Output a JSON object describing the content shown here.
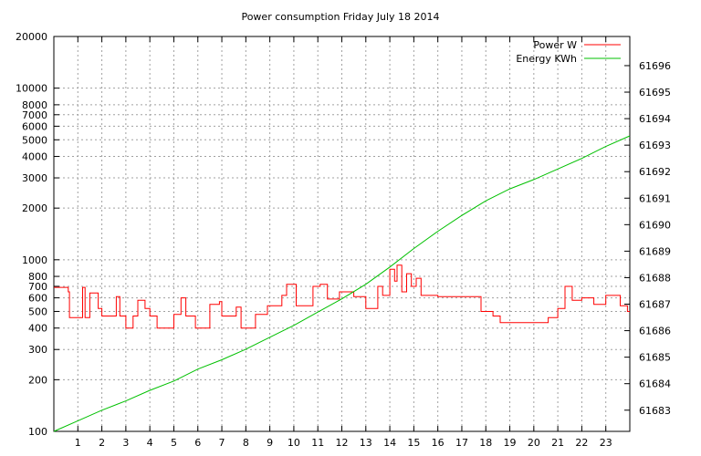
{
  "chart_data": {
    "type": "line",
    "title": "Power consumption Friday July 18 2014",
    "xlabel": "",
    "ylabel": "",
    "y2label": "",
    "x_range": [
      0,
      24
    ],
    "x_ticks": [
      "1",
      "2",
      "3",
      "4",
      "5",
      "6",
      "7",
      "8",
      "9",
      "10",
      "11",
      "12",
      "13",
      "14",
      "15",
      "16",
      "17",
      "18",
      "19",
      "20",
      "21",
      "22",
      "23"
    ],
    "y_scale": "log",
    "y_range": [
      100,
      20000
    ],
    "y_ticks": [
      "100",
      "200",
      "300",
      "400",
      "500",
      "600",
      "700",
      "800",
      "1000",
      "2000",
      "3000",
      "4000",
      "5000",
      "6000",
      "7000",
      "8000",
      "10000",
      "20000"
    ],
    "y2_range": [
      61682.2,
      61697.1
    ],
    "y2_ticks": [
      "61683",
      "61684",
      "61685",
      "61686",
      "61687",
      "61688",
      "61689",
      "61690",
      "61691",
      "61692",
      "61693",
      "61694",
      "61695",
      "61696"
    ],
    "grid": true,
    "legend_position": "top-right",
    "series": [
      {
        "name": "Power W",
        "color": "#ff0000",
        "axis": "left",
        "step": true,
        "x": [
          0.0,
          0.6,
          0.65,
          0.9,
          1.1,
          1.2,
          1.3,
          1.5,
          1.7,
          1.85,
          1.9,
          2.0,
          2.35,
          2.5,
          2.6,
          2.75,
          2.8,
          3.0,
          3.2,
          3.3,
          3.5,
          3.55,
          3.8,
          4.0,
          4.1,
          4.3,
          4.5,
          5.0,
          5.3,
          5.4,
          5.5,
          5.8,
          5.9,
          6.2,
          6.5,
          6.75,
          6.9,
          7.0,
          7.3,
          7.6,
          7.8,
          8.0,
          8.4,
          8.5,
          8.9,
          9.1,
          9.5,
          9.7,
          10.1,
          10.5,
          10.8,
          11.1,
          11.4,
          11.6,
          11.9,
          12.1,
          12.5,
          12.7,
          13.0,
          13.2,
          13.5,
          13.7,
          14.0,
          14.2,
          14.3,
          14.5,
          14.7,
          14.9,
          15.1,
          15.3,
          15.5,
          15.7,
          16.0,
          16.3,
          16.6,
          16.9,
          17.2,
          17.5,
          17.8,
          18.0,
          18.3,
          18.6,
          18.9,
          19.2,
          19.5,
          19.9,
          20.3,
          20.6,
          21.0,
          21.3,
          21.6,
          21.8,
          22.0,
          22.2,
          22.5,
          22.8,
          23.0,
          23.3,
          23.6,
          23.9
        ],
        "values": [
          690,
          650,
          460,
          460,
          460,
          690,
          460,
          640,
          640,
          520,
          520,
          470,
          470,
          470,
          610,
          470,
          470,
          400,
          400,
          470,
          580,
          580,
          520,
          470,
          470,
          400,
          400,
          480,
          600,
          600,
          470,
          470,
          400,
          400,
          550,
          550,
          570,
          470,
          470,
          530,
          400,
          400,
          480,
          480,
          540,
          540,
          620,
          720,
          540,
          540,
          700,
          720,
          590,
          590,
          650,
          650,
          610,
          610,
          520,
          520,
          700,
          620,
          880,
          750,
          930,
          650,
          830,
          700,
          780,
          620,
          620,
          620,
          610,
          610,
          610,
          610,
          610,
          610,
          500,
          500,
          470,
          430,
          430,
          430,
          430,
          430,
          430,
          460,
          520,
          700,
          580,
          580,
          600,
          600,
          550,
          550,
          620,
          620,
          540,
          500
        ]
      },
      {
        "name": "Energy KWh",
        "color": "#00c000",
        "axis": "right",
        "step": false,
        "x": [
          0,
          1,
          2,
          3,
          4,
          5,
          6,
          7,
          8,
          9,
          10,
          11,
          12,
          13,
          14,
          15,
          16,
          17,
          18,
          19,
          20,
          21,
          22,
          23,
          24
        ],
        "values": [
          61682.2,
          61682.6,
          61683.0,
          61683.35,
          61683.75,
          61684.1,
          61684.55,
          61684.9,
          61685.3,
          61685.75,
          61686.2,
          61686.7,
          61687.2,
          61687.75,
          61688.4,
          61689.1,
          61689.75,
          61690.35,
          61690.9,
          61691.35,
          61691.7,
          61692.1,
          61692.5,
          61692.95,
          61693.35
        ]
      }
    ]
  }
}
